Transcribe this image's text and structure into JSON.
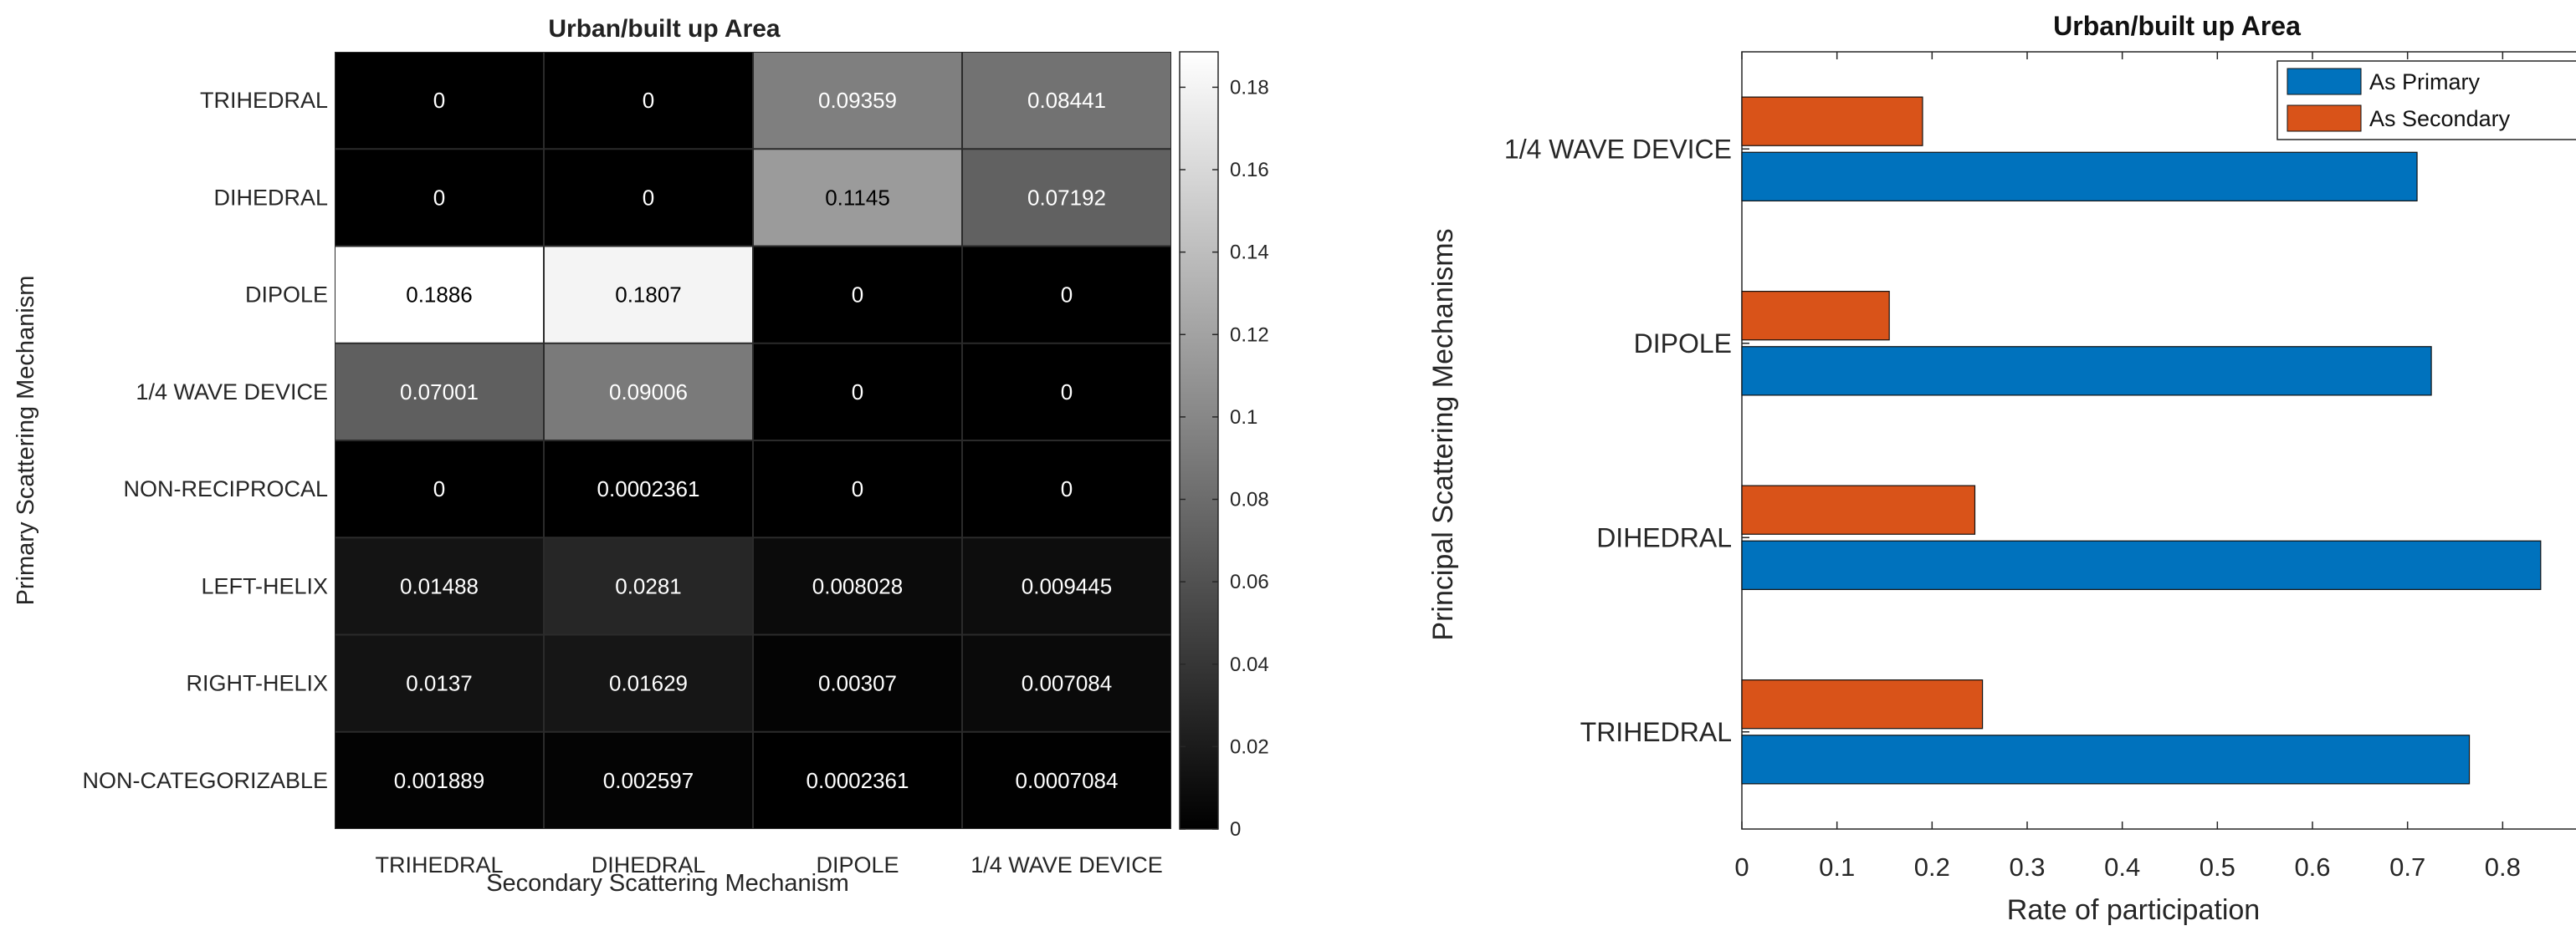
{
  "chart_data": [
    {
      "type": "heatmap",
      "title": "Urban/built up Area",
      "xlabel": "Secondary Scattering Mechanism",
      "ylabel": "Primary Scattering Mechanism",
      "x_categories": [
        "TRIHEDRAL",
        "DIHEDRAL",
        "DIPOLE",
        "1/4 WAVE DEVICE"
      ],
      "y_categories": [
        "TRIHEDRAL",
        "DIHEDRAL",
        "DIPOLE",
        "1/4 WAVE DEVICE",
        "NON-RECIPROCAL",
        "LEFT-HELIX",
        "RIGHT-HELIX",
        "NON-CATEGORIZABLE"
      ],
      "values": [
        [
          0,
          0,
          0.09359,
          0.08441
        ],
        [
          0,
          0,
          0.1145,
          0.07192
        ],
        [
          0.1886,
          0.1807,
          0,
          0
        ],
        [
          0.07001,
          0.09006,
          0,
          0
        ],
        [
          0,
          0.0002361,
          0,
          0
        ],
        [
          0.01488,
          0.0281,
          0.008028,
          0.009445
        ],
        [
          0.0137,
          0.01629,
          0.00307,
          0.007084
        ],
        [
          0.001889,
          0.002597,
          0.0002361,
          0.0007084
        ]
      ],
      "labels": [
        [
          "0",
          "0",
          "0.09359",
          "0.08441"
        ],
        [
          "0",
          "0",
          "0.1145",
          "0.07192"
        ],
        [
          "0.1886",
          "0.1807",
          "0",
          "0"
        ],
        [
          "0.07001",
          "0.09006",
          "0",
          "0"
        ],
        [
          "0",
          "0.0002361",
          "0",
          "0"
        ],
        [
          "0.01488",
          "0.0281",
          "0.008028",
          "0.009445"
        ],
        [
          "0.0137",
          "0.01629",
          "0.00307",
          "0.007084"
        ],
        [
          "0.001889",
          "0.002597",
          "0.0002361",
          "0.0007084"
        ]
      ],
      "colorbar": {
        "colormap": "gray",
        "range": [
          0,
          0.1886
        ],
        "ticks": [
          0,
          0.02,
          0.04,
          0.06,
          0.08,
          0.1,
          0.12,
          0.14,
          0.16,
          0.18
        ],
        "tick_labels": [
          "0",
          "0.02",
          "0.04",
          "0.06",
          "0.08",
          "0.1",
          "0.12",
          "0.14",
          "0.16",
          "0.18"
        ]
      }
    },
    {
      "type": "bar",
      "orientation": "horizontal",
      "title": "Urban/built up Area",
      "xlabel": "Rate of participation",
      "ylabel": "Principal Scattering Mechanisms",
      "categories": [
        "TRIHEDRAL",
        "DIHEDRAL",
        "DIPOLE",
        "1/4 WAVE DEVICE"
      ],
      "series": [
        {
          "name": "As Primary",
          "color": "#0072BD",
          "values": [
            0.765,
            0.84,
            0.725,
            0.71
          ]
        },
        {
          "name": "As Secondary",
          "color": "#D95319",
          "values": [
            0.253,
            0.245,
            0.155,
            0.19
          ]
        }
      ],
      "xlim": [
        0,
        0.9
      ],
      "xticks": [
        0,
        0.1,
        0.2,
        0.3,
        0.4,
        0.5,
        0.6,
        0.7,
        0.8
      ],
      "xtick_labels": [
        "0",
        "0.1",
        "0.2",
        "0.3",
        "0.4",
        "0.5",
        "0.6",
        "0.7",
        "0.8"
      ],
      "legend_position": "top-right"
    }
  ]
}
